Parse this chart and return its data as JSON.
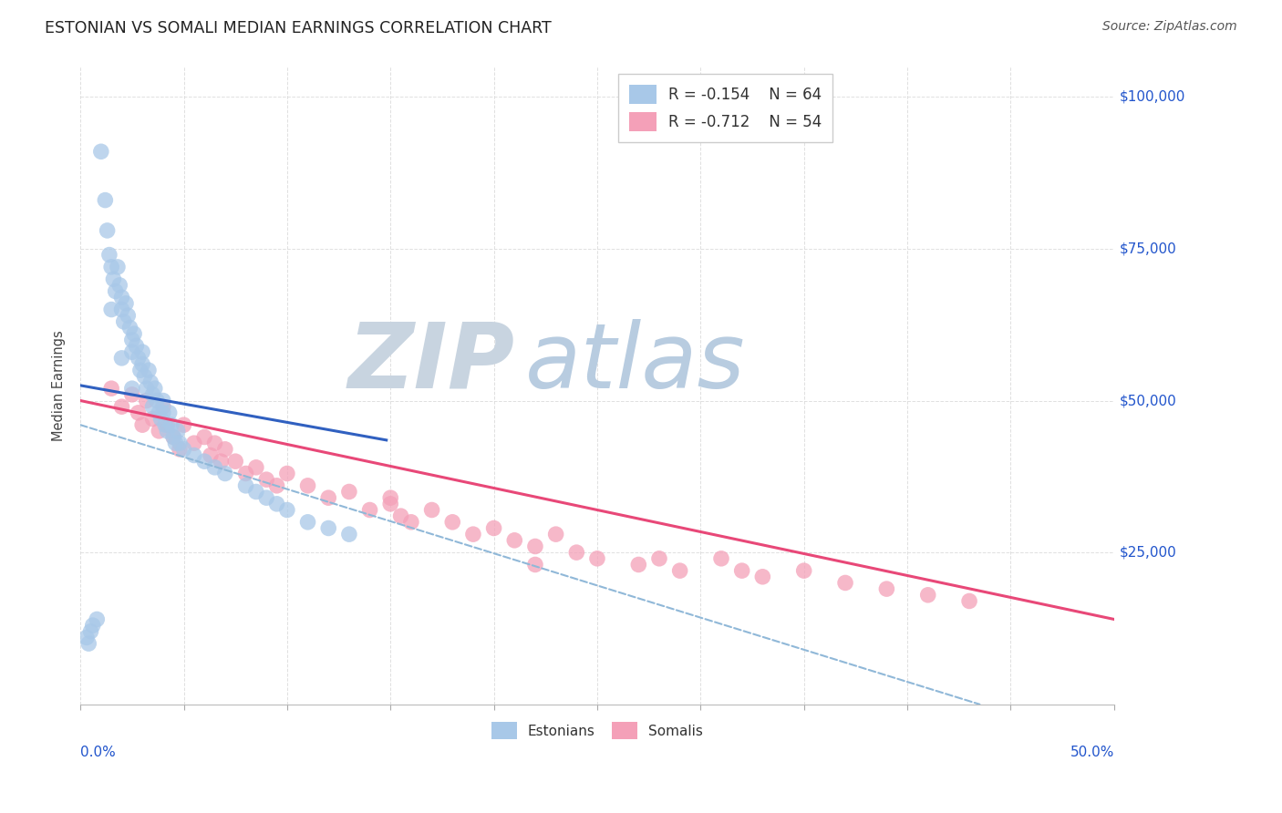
{
  "title": "ESTONIAN VS SOMALI MEDIAN EARNINGS CORRELATION CHART",
  "source": "Source: ZipAtlas.com",
  "ylabel": "Median Earnings",
  "y_ticks": [
    0,
    25000,
    50000,
    75000,
    100000
  ],
  "x_range": [
    0.0,
    0.5
  ],
  "y_range": [
    0,
    105000
  ],
  "legend_r1": "R = -0.154",
  "legend_n1": "N = 64",
  "legend_r2": "R = -0.712",
  "legend_n2": "N = 54",
  "color_estonian": "#a8c8e8",
  "color_somali": "#f4a0b8",
  "color_line_estonian": "#3060c0",
  "color_line_somali": "#e84878",
  "color_line_dashed": "#90b8d8",
  "watermark_zip": "ZIP",
  "watermark_atlas": "atlas",
  "watermark_zip_color": "#c8d4e0",
  "watermark_atlas_color": "#b8cce0",
  "background_color": "#ffffff",
  "grid_color": "#d8d8d8",
  "estonian_x": [
    0.005,
    0.01,
    0.012,
    0.013,
    0.014,
    0.015,
    0.016,
    0.017,
    0.018,
    0.019,
    0.02,
    0.02,
    0.021,
    0.022,
    0.023,
    0.024,
    0.025,
    0.025,
    0.026,
    0.027,
    0.028,
    0.029,
    0.03,
    0.03,
    0.031,
    0.032,
    0.033,
    0.034,
    0.035,
    0.035,
    0.036,
    0.037,
    0.038,
    0.039,
    0.04,
    0.04,
    0.041,
    0.042,
    0.043,
    0.044,
    0.045,
    0.046,
    0.047,
    0.048,
    0.05,
    0.055,
    0.06,
    0.065,
    0.07,
    0.08,
    0.085,
    0.09,
    0.095,
    0.1,
    0.11,
    0.12,
    0.13,
    0.015,
    0.02,
    0.025,
    0.003,
    0.004,
    0.006,
    0.008
  ],
  "estonian_y": [
    12000,
    91000,
    83000,
    78000,
    74000,
    72000,
    70000,
    68000,
    72000,
    69000,
    67000,
    65000,
    63000,
    66000,
    64000,
    62000,
    60000,
    58000,
    61000,
    59000,
    57000,
    55000,
    58000,
    56000,
    54000,
    52000,
    55000,
    53000,
    51000,
    49000,
    52000,
    50000,
    48000,
    47000,
    50000,
    48000,
    46000,
    45000,
    48000,
    46000,
    44000,
    43000,
    45000,
    43000,
    42000,
    41000,
    40000,
    39000,
    38000,
    36000,
    35000,
    34000,
    33000,
    32000,
    30000,
    29000,
    28000,
    65000,
    57000,
    52000,
    11000,
    10000,
    13000,
    14000
  ],
  "somali_x": [
    0.015,
    0.02,
    0.025,
    0.028,
    0.03,
    0.032,
    0.035,
    0.038,
    0.04,
    0.042,
    0.045,
    0.048,
    0.05,
    0.055,
    0.06,
    0.063,
    0.065,
    0.068,
    0.07,
    0.075,
    0.08,
    0.085,
    0.09,
    0.095,
    0.1,
    0.11,
    0.12,
    0.13,
    0.14,
    0.15,
    0.155,
    0.16,
    0.17,
    0.18,
    0.19,
    0.2,
    0.21,
    0.22,
    0.23,
    0.24,
    0.25,
    0.27,
    0.29,
    0.31,
    0.33,
    0.35,
    0.37,
    0.39,
    0.41,
    0.43,
    0.15,
    0.22,
    0.28,
    0.32
  ],
  "somali_y": [
    52000,
    49000,
    51000,
    48000,
    46000,
    50000,
    47000,
    45000,
    49000,
    46000,
    44000,
    42000,
    46000,
    43000,
    44000,
    41000,
    43000,
    40000,
    42000,
    40000,
    38000,
    39000,
    37000,
    36000,
    38000,
    36000,
    34000,
    35000,
    32000,
    33000,
    31000,
    30000,
    32000,
    30000,
    28000,
    29000,
    27000,
    26000,
    28000,
    25000,
    24000,
    23000,
    22000,
    24000,
    21000,
    22000,
    20000,
    19000,
    18000,
    17000,
    34000,
    23000,
    24000,
    22000
  ],
  "est_line_x0": 0.0,
  "est_line_x1": 0.148,
  "est_line_y0": 52500,
  "est_line_y1": 43500,
  "som_line_x0": 0.0,
  "som_line_x1": 0.5,
  "som_line_y0": 50000,
  "som_line_y1": 14000,
  "dash_line_x0": 0.0,
  "dash_line_x1": 0.435,
  "dash_line_y0": 46000,
  "dash_line_y1": 0
}
